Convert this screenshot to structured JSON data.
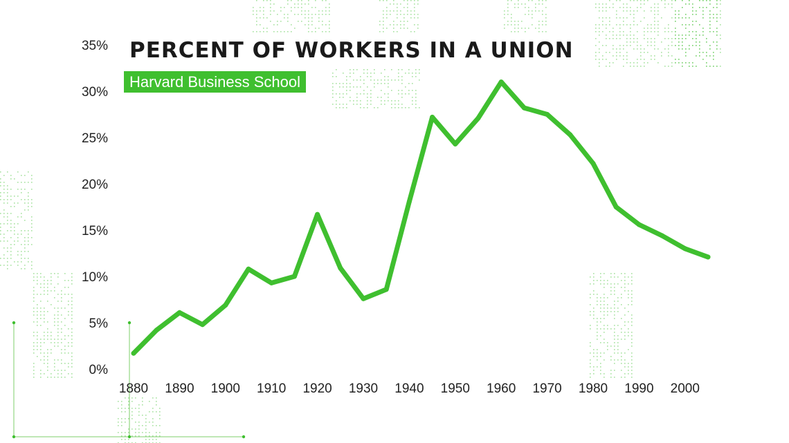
{
  "chart_data": {
    "type": "line",
    "title": "PERCENT OF WORKERS IN A UNION",
    "subtitle": "Harvard Business School",
    "xlabel": "",
    "ylabel": "",
    "x": [
      1880,
      1885,
      1890,
      1895,
      1900,
      1905,
      1910,
      1915,
      1920,
      1925,
      1930,
      1935,
      1940,
      1945,
      1950,
      1955,
      1960,
      1965,
      1970,
      1975,
      1980,
      1985,
      1990,
      1995,
      2000,
      2005
    ],
    "series": [
      {
        "name": "",
        "color": "#3fbf2f",
        "values": [
          1.7,
          4.2,
          6.1,
          4.8,
          6.9,
          10.8,
          9.3,
          10.0,
          16.7,
          10.9,
          7.6,
          8.6,
          18.1,
          27.2,
          24.3,
          27.1,
          31.0,
          28.2,
          27.5,
          25.3,
          22.2,
          17.5,
          15.6,
          14.4,
          13.0,
          12.1
        ]
      }
    ],
    "xticks": [
      "1880",
      "1890",
      "1900",
      "1910",
      "1920",
      "1930",
      "1940",
      "1950",
      "1960",
      "1970",
      "1980",
      "1990",
      "2000"
    ],
    "yticks": [
      "0%",
      "5%",
      "10%",
      "15%",
      "20%",
      "25%",
      "30%",
      "35%"
    ],
    "xlim": [
      1880,
      2005
    ],
    "ylim": [
      0,
      35
    ],
    "grid": false,
    "legend": "none"
  },
  "style": {
    "accent": "#3fbf2f",
    "text": "#222222",
    "title_color": "#1a1a1a",
    "background": "#ffffff",
    "dot_pattern": "#3fbf2f"
  }
}
